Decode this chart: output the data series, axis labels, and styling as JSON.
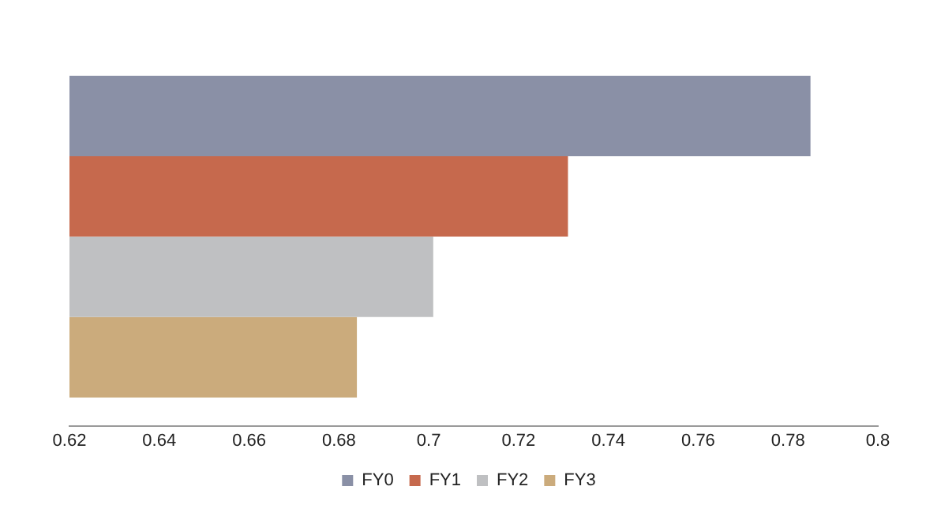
{
  "chart_data": {
    "type": "bar",
    "orientation": "horizontal",
    "categories": [
      null
    ],
    "series": [
      {
        "name": "FY0",
        "color": "#8a90a6",
        "values": [
          0.785
        ]
      },
      {
        "name": "FY1",
        "color": "#c6694d",
        "values": [
          0.731
        ]
      },
      {
        "name": "FY2",
        "color": "#bfc0c2",
        "values": [
          0.701
        ]
      },
      {
        "name": "FY3",
        "color": "#cbab7c",
        "values": [
          0.684
        ]
      }
    ],
    "xlim": [
      0.62,
      0.8
    ],
    "xticks": [
      0.62,
      0.64,
      0.66,
      0.68,
      0.7,
      0.72,
      0.74,
      0.76,
      0.78,
      0.8
    ],
    "grid": false,
    "legend": "bottom"
  }
}
